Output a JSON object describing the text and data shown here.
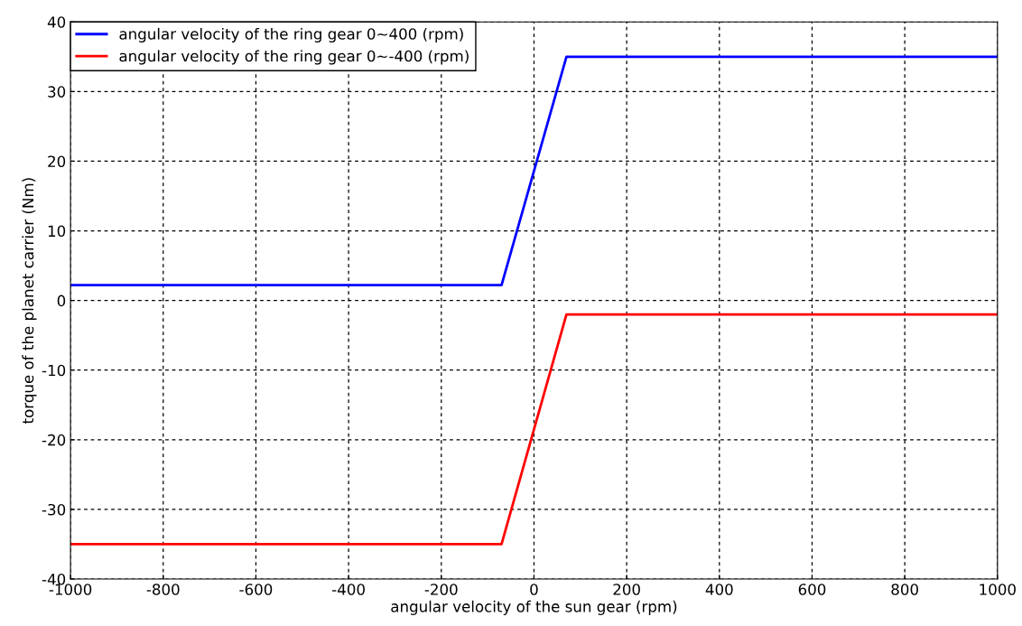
{
  "chart_data": {
    "type": "line",
    "xlabel": "angular velocity of the sun gear (rpm)",
    "ylabel": "torque of the planet carrier (Nm)",
    "xlim": [
      -1000,
      1000
    ],
    "xticks": [
      -1000,
      -800,
      -600,
      -400,
      -200,
      0,
      200,
      400,
      600,
      800,
      1000
    ],
    "ylim": [
      -40,
      40
    ],
    "yticks": [
      -40,
      -30,
      -20,
      -10,
      0,
      10,
      20,
      30,
      40
    ],
    "grid": true,
    "legend": "top left",
    "line_style": "solid",
    "marker": "none",
    "series": [
      {
        "name": "angular velocity of the ring gear 0~400 (rpm)",
        "color": "#0000ff",
        "x": [
          -1000,
          -70,
          70,
          1000
        ],
        "values": [
          2.2,
          2.2,
          35,
          35
        ]
      },
      {
        "name": "angular velocity of the ring gear 0~-400 (rpm)",
        "color": "#ff0000",
        "x": [
          -1000,
          -70,
          70,
          1000
        ],
        "values": [
          -35,
          -35,
          -2,
          -2
        ]
      }
    ]
  }
}
